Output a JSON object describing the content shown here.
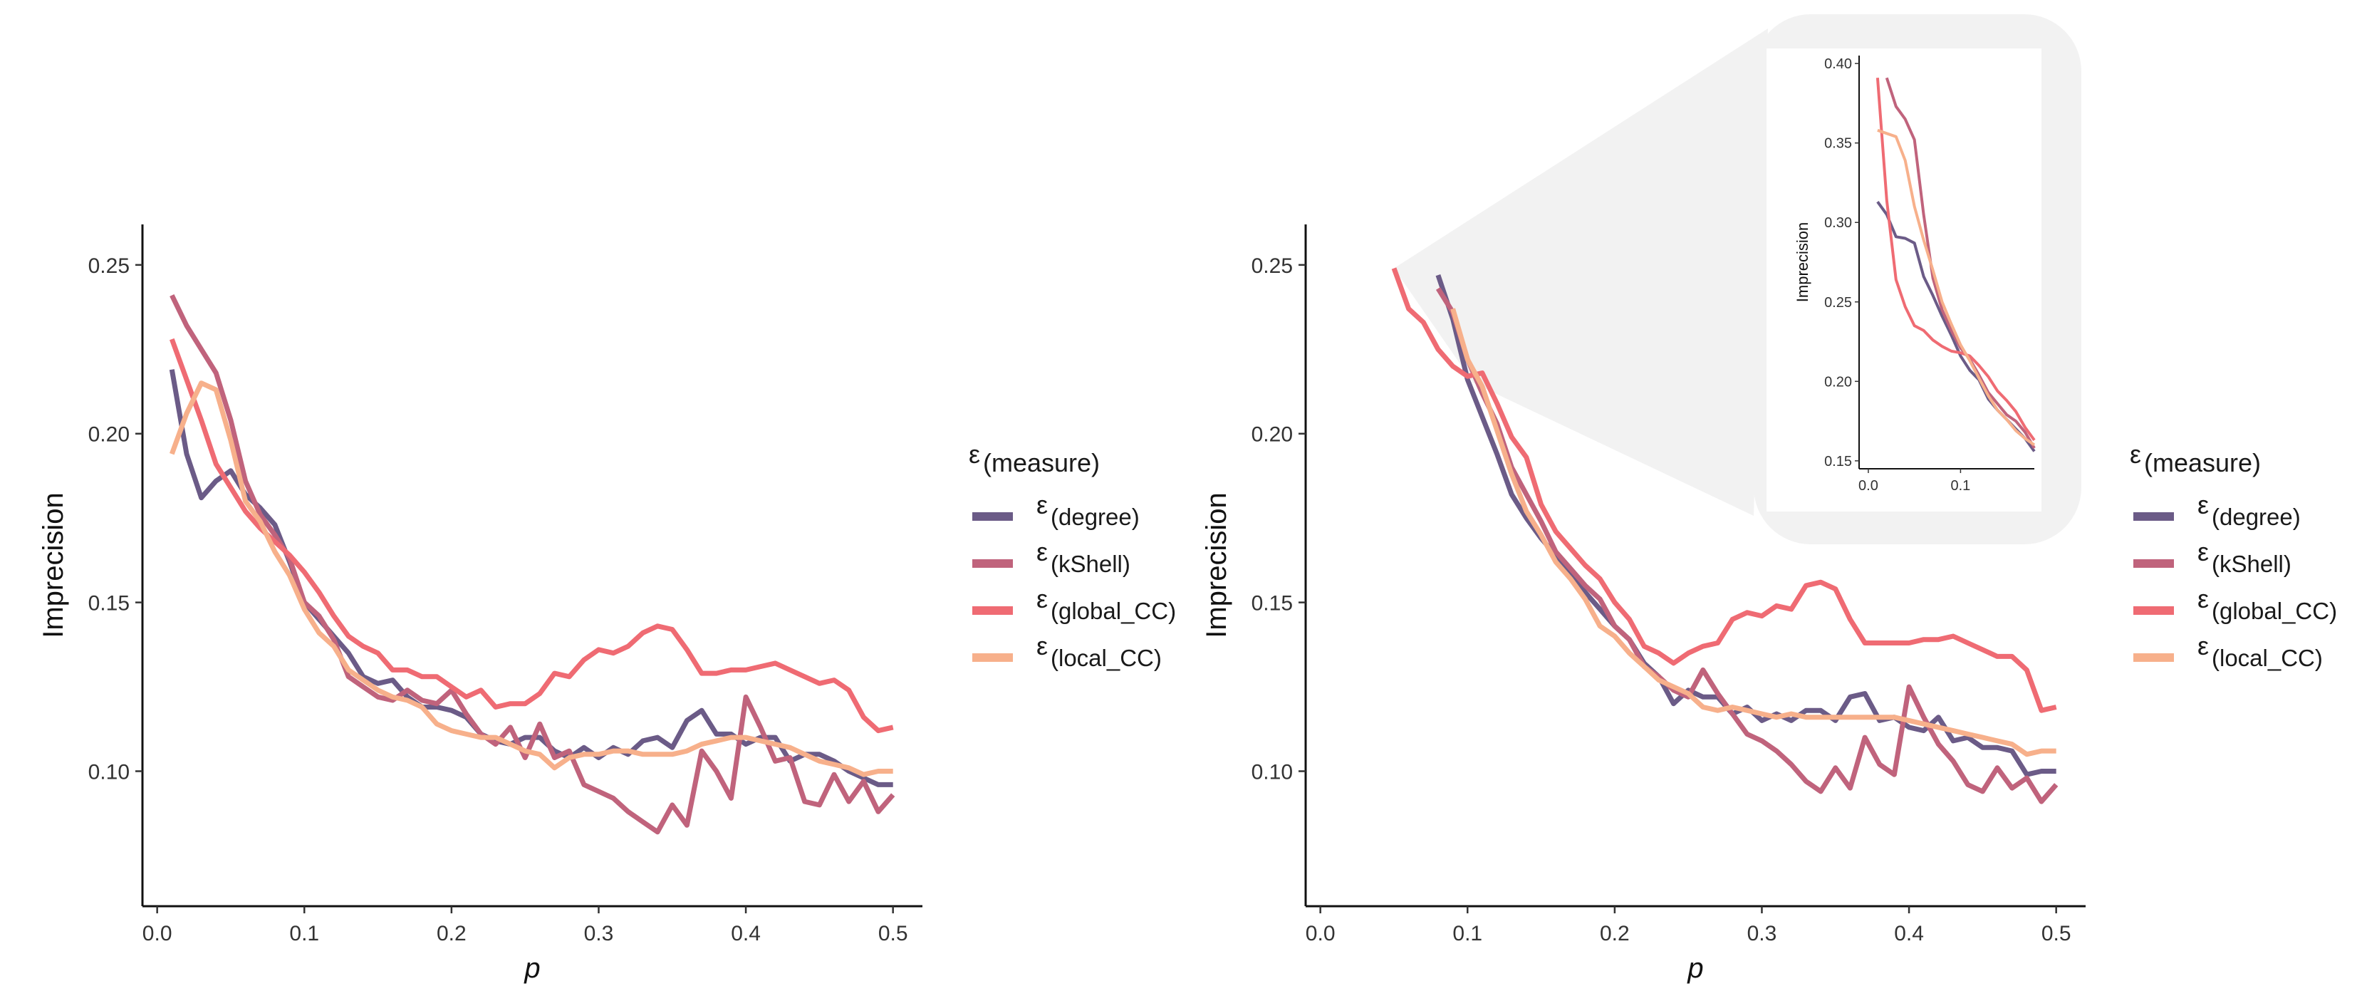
{
  "chart_data": [
    {
      "type": "line",
      "xlabel": "p",
      "ylabel": "Imprecision",
      "xlim": [
        -0.01,
        0.52
      ],
      "ylim": [
        0.06,
        0.262
      ],
      "xticks": [
        0.0,
        0.1,
        0.2,
        0.3,
        0.4,
        0.5
      ],
      "xtick_labels": [
        "0.0",
        "0.1",
        "0.2",
        "0.3",
        "0.4",
        "0.5"
      ],
      "yticks": [
        0.1,
        0.15,
        0.2,
        0.25
      ],
      "ytick_labels": [
        "0.10",
        "0.15",
        "0.20",
        "0.25"
      ],
      "legend": {
        "title_symbol": "ε",
        "title_sub": "(measure)",
        "position": "right"
      },
      "x": [
        0.01,
        0.02,
        0.03,
        0.04,
        0.05,
        0.06,
        0.07,
        0.08,
        0.09,
        0.1,
        0.11,
        0.12,
        0.13,
        0.14,
        0.15,
        0.16,
        0.17,
        0.18,
        0.19,
        0.2,
        0.21,
        0.22,
        0.23,
        0.24,
        0.25,
        0.26,
        0.27,
        0.28,
        0.29,
        0.3,
        0.31,
        0.32,
        0.33,
        0.34,
        0.35,
        0.36,
        0.37,
        0.38,
        0.39,
        0.4,
        0.41,
        0.42,
        0.43,
        0.44,
        0.45,
        0.46,
        0.47,
        0.48,
        0.49,
        0.5
      ],
      "series": [
        {
          "name": "(degree)",
          "color": "#6b5b87",
          "values": [
            0.219,
            0.194,
            0.181,
            0.186,
            0.189,
            0.182,
            0.178,
            0.173,
            0.162,
            0.15,
            0.145,
            0.14,
            0.135,
            0.128,
            0.126,
            0.127,
            0.122,
            0.119,
            0.119,
            0.118,
            0.116,
            0.111,
            0.109,
            0.108,
            0.11,
            0.11,
            0.106,
            0.104,
            0.107,
            0.104,
            0.107,
            0.105,
            0.109,
            0.11,
            0.107,
            0.115,
            0.118,
            0.111,
            0.111,
            0.108,
            0.11,
            0.11,
            0.103,
            0.105,
            0.105,
            0.103,
            0.1,
            0.098,
            0.096,
            0.096
          ]
        },
        {
          "name": "(kShell)",
          "color": "#c0637c",
          "values": [
            0.241,
            0.232,
            0.225,
            0.218,
            0.204,
            0.186,
            0.176,
            0.17,
            0.163,
            0.15,
            0.146,
            0.139,
            0.128,
            0.125,
            0.122,
            0.121,
            0.124,
            0.121,
            0.12,
            0.124,
            0.117,
            0.111,
            0.108,
            0.113,
            0.104,
            0.114,
            0.104,
            0.106,
            0.096,
            0.094,
            0.092,
            0.088,
            0.085,
            0.082,
            0.09,
            0.084,
            0.106,
            0.1,
            0.092,
            0.122,
            0.113,
            0.103,
            0.104,
            0.091,
            0.09,
            0.099,
            0.091,
            0.097,
            0.088,
            0.093
          ]
        },
        {
          "name": "(global_CC)",
          "color": "#ef6b73",
          "values": [
            0.228,
            0.216,
            0.204,
            0.191,
            0.184,
            0.177,
            0.172,
            0.168,
            0.164,
            0.159,
            0.153,
            0.146,
            0.14,
            0.137,
            0.135,
            0.13,
            0.13,
            0.128,
            0.128,
            0.125,
            0.122,
            0.124,
            0.119,
            0.12,
            0.12,
            0.123,
            0.129,
            0.128,
            0.133,
            0.136,
            0.135,
            0.137,
            0.141,
            0.143,
            0.142,
            0.136,
            0.129,
            0.129,
            0.13,
            0.13,
            0.131,
            0.132,
            0.13,
            0.128,
            0.126,
            0.127,
            0.124,
            0.116,
            0.112,
            0.113
          ]
        },
        {
          "name": "(local_CC)",
          "color": "#f7b08b",
          "values": [
            0.194,
            0.206,
            0.215,
            0.213,
            0.198,
            0.18,
            0.174,
            0.165,
            0.158,
            0.148,
            0.141,
            0.137,
            0.13,
            0.127,
            0.124,
            0.122,
            0.121,
            0.119,
            0.114,
            0.112,
            0.111,
            0.11,
            0.11,
            0.108,
            0.106,
            0.105,
            0.101,
            0.104,
            0.105,
            0.105,
            0.106,
            0.106,
            0.105,
            0.105,
            0.105,
            0.106,
            0.108,
            0.109,
            0.11,
            0.11,
            0.109,
            0.108,
            0.107,
            0.105,
            0.103,
            0.102,
            0.101,
            0.099,
            0.1,
            0.1
          ]
        }
      ]
    },
    {
      "type": "line",
      "xlabel": "p",
      "ylabel": "Imprecision",
      "xlim": [
        -0.01,
        0.52
      ],
      "ylim": [
        0.06,
        0.262
      ],
      "xticks": [
        0.0,
        0.1,
        0.2,
        0.3,
        0.4,
        0.5
      ],
      "xtick_labels": [
        "0.0",
        "0.1",
        "0.2",
        "0.3",
        "0.4",
        "0.5"
      ],
      "yticks": [
        0.1,
        0.15,
        0.2,
        0.25
      ],
      "ytick_labels": [
        "0.10",
        "0.15",
        "0.20",
        "0.25"
      ],
      "legend": {
        "title_symbol": "ε",
        "title_sub": "(measure)",
        "position": "right"
      },
      "x": [
        0.05,
        0.06,
        0.07,
        0.08,
        0.09,
        0.1,
        0.11,
        0.12,
        0.13,
        0.14,
        0.15,
        0.16,
        0.17,
        0.18,
        0.19,
        0.2,
        0.21,
        0.22,
        0.23,
        0.24,
        0.25,
        0.26,
        0.27,
        0.28,
        0.29,
        0.3,
        0.31,
        0.32,
        0.33,
        0.34,
        0.35,
        0.36,
        0.37,
        0.38,
        0.39,
        0.4,
        0.41,
        0.42,
        0.43,
        0.44,
        0.45,
        0.46,
        0.47,
        0.48,
        0.49,
        0.5
      ],
      "series": [
        {
          "name": "(degree)",
          "color": "#6b5b87",
          "values": [
            null,
            null,
            null,
            0.247,
            0.234,
            0.216,
            0.205,
            0.194,
            0.182,
            0.175,
            0.169,
            0.164,
            0.158,
            0.153,
            0.148,
            0.143,
            0.139,
            0.132,
            0.128,
            0.12,
            0.124,
            0.122,
            0.122,
            0.117,
            0.119,
            0.115,
            0.117,
            0.115,
            0.118,
            0.118,
            0.115,
            0.122,
            0.123,
            0.115,
            0.116,
            0.113,
            0.112,
            0.116,
            0.109,
            0.11,
            0.107,
            0.107,
            0.106,
            0.099,
            0.1,
            0.1
          ]
        },
        {
          "name": "(kShell)",
          "color": "#c0637c",
          "values": [
            null,
            null,
            null,
            0.243,
            0.236,
            0.222,
            0.212,
            0.203,
            0.19,
            0.182,
            0.174,
            0.165,
            0.16,
            0.155,
            0.151,
            0.143,
            0.139,
            0.131,
            0.128,
            0.124,
            0.122,
            0.13,
            0.123,
            0.117,
            0.111,
            0.109,
            0.106,
            0.102,
            0.097,
            0.094,
            0.101,
            0.095,
            0.11,
            0.102,
            0.099,
            0.125,
            0.116,
            0.108,
            0.103,
            0.096,
            0.094,
            0.101,
            0.095,
            0.098,
            0.091,
            0.096
          ]
        },
        {
          "name": "(global_CC)",
          "color": "#ef6b73",
          "values": [
            0.249,
            0.237,
            0.233,
            0.225,
            0.22,
            0.217,
            0.218,
            0.209,
            0.199,
            0.193,
            0.179,
            0.171,
            0.166,
            0.161,
            0.157,
            0.15,
            0.145,
            0.137,
            0.135,
            0.132,
            0.135,
            0.137,
            0.138,
            0.145,
            0.147,
            0.146,
            0.149,
            0.148,
            0.155,
            0.156,
            0.154,
            0.145,
            0.138,
            0.138,
            0.138,
            0.138,
            0.139,
            0.139,
            0.14,
            0.138,
            0.136,
            0.134,
            0.134,
            0.13,
            0.118,
            0.119
          ]
        },
        {
          "name": "(local_CC)",
          "color": "#f7b08b",
          "values": [
            null,
            null,
            null,
            null,
            0.237,
            0.222,
            0.214,
            0.201,
            0.188,
            0.177,
            0.17,
            0.162,
            0.157,
            0.151,
            0.143,
            0.14,
            0.135,
            0.131,
            0.127,
            0.125,
            0.123,
            0.119,
            0.118,
            0.119,
            0.118,
            0.117,
            0.116,
            0.117,
            0.116,
            0.116,
            0.116,
            0.116,
            0.116,
            0.116,
            0.116,
            0.115,
            0.114,
            0.113,
            0.112,
            0.111,
            0.11,
            0.109,
            0.108,
            0.105,
            0.106,
            0.106
          ]
        }
      ],
      "inset": {
        "ylabel": "Imprecision",
        "xlim": [
          -0.01,
          0.18
        ],
        "ylim": [
          0.145,
          0.405
        ],
        "xticks": [
          0.0,
          0.1
        ],
        "xtick_labels": [
          "0.0",
          "0.1"
        ],
        "yticks": [
          0.15,
          0.2,
          0.25,
          0.3,
          0.35,
          0.4
        ],
        "ytick_labels": [
          "0.15",
          "0.20",
          "0.25",
          "0.30",
          "0.35",
          "0.40"
        ],
        "x": [
          0.01,
          0.02,
          0.03,
          0.04,
          0.05,
          0.06,
          0.07,
          0.08,
          0.09,
          0.1,
          0.11,
          0.12,
          0.13,
          0.14,
          0.15,
          0.16,
          0.17,
          0.18
        ],
        "series": [
          {
            "name": "(degree)",
            "color": "#6b5b87",
            "values": [
              0.313,
              0.305,
              0.291,
              0.29,
              0.287,
              0.266,
              0.254,
              0.241,
              0.229,
              0.216,
              0.207,
              0.201,
              0.189,
              0.182,
              0.176,
              0.17,
              0.164,
              0.156
            ]
          },
          {
            "name": "(kShell)",
            "color": "#c0637c",
            "values": [
              null,
              0.391,
              0.373,
              0.365,
              0.352,
              0.305,
              0.265,
              0.245,
              0.232,
              0.221,
              0.214,
              0.204,
              0.193,
              0.186,
              0.179,
              0.175,
              0.168,
              0.158
            ]
          },
          {
            "name": "(global_CC)",
            "color": "#ef6b73",
            "values": [
              0.391,
              0.314,
              0.264,
              0.247,
              0.235,
              0.232,
              0.226,
              0.222,
              0.219,
              0.218,
              0.216,
              0.21,
              0.203,
              0.194,
              0.188,
              0.181,
              0.171,
              0.163
            ]
          },
          {
            "name": "(local_CC)",
            "color": "#f7b08b",
            "values": [
              0.358,
              0.356,
              0.354,
              0.339,
              0.31,
              0.289,
              0.27,
              0.25,
              0.236,
              0.223,
              0.213,
              0.202,
              0.191,
              0.182,
              0.176,
              0.169,
              0.164,
              0.16
            ]
          }
        ]
      }
    }
  ]
}
